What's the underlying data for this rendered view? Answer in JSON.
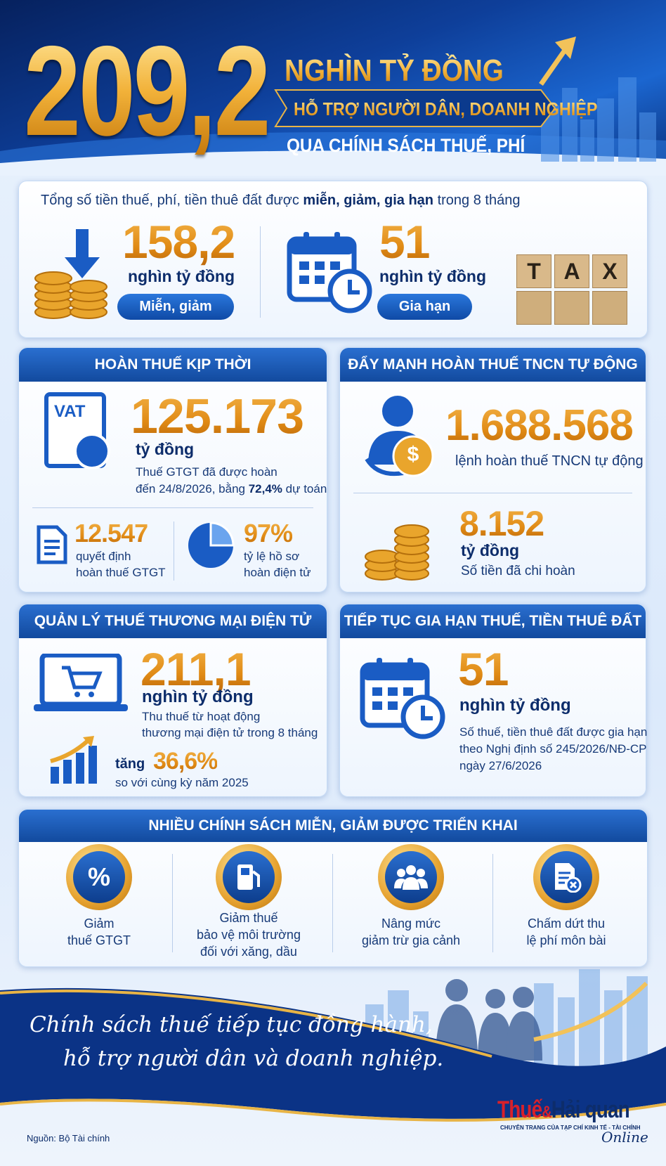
{
  "header": {
    "big_number": "209,2",
    "line1": "NGHÌN TỶ ĐỒNG",
    "line2": "HỖ TRỢ NGƯỜI DÂN, DOANH NGHIỆP",
    "line3": "QUA CHÍNH SÁCH THUẾ, PHÍ"
  },
  "summary": {
    "intro": [
      "Tổng số tiền thuế, phí, tiền thuê đất được ",
      "miễn, giảm, gia hạn",
      " trong 8 tháng"
    ],
    "items": [
      {
        "value": "158,2",
        "unit": "nghìn tỷ đồng",
        "tag": "Miễn, giảm"
      },
      {
        "value": "51",
        "unit": "nghìn tỷ đồng",
        "tag": "Gia hạn"
      }
    ],
    "tax_blocks": [
      "T",
      "A",
      "X"
    ]
  },
  "refund": {
    "title": "HOÀN THUẾ KỊP THỜI",
    "icon_text": "VAT",
    "value": "125.173",
    "unit": "tỷ đồng",
    "desc_line1": "Thuế GTGT đã được hoàn",
    "desc_line2": [
      "đến 24/8/2026, bằng ",
      "72,4%",
      " dự toán"
    ],
    "sub": [
      {
        "value": "12.547",
        "lines": [
          "quyết định",
          "hoàn thuế GTGT"
        ]
      },
      {
        "value": "97%",
        "lines": [
          "tỷ lệ hồ sơ",
          "hoàn điện tử"
        ]
      }
    ]
  },
  "pit": {
    "title": "ĐẨY MẠNH HOÀN THUẾ TNCN TỰ ĐỘNG",
    "value": "1.688.568",
    "label": "lệnh hoàn thuế TNCN tự động",
    "icon_text": "$",
    "value2": "8.152",
    "unit2": "tỷ đồng",
    "label2": "Số tiền đã chi hoàn"
  },
  "ecommerce": {
    "title": "QUẢN LÝ THUẾ THƯƠNG MẠI ĐIỆN TỬ",
    "value": "211,1",
    "unit": "nghìn tỷ đồng",
    "lines": [
      "Thu thuế từ hoạt động",
      "thương mại điện tử trong 8 tháng"
    ],
    "growth_word": "tăng",
    "growth_value": "36,6%",
    "growth_note": "so với cùng kỳ năm 2025"
  },
  "extension": {
    "title": "TIẾP TỤC GIA HẠN THUẾ, TIỀN THUÊ ĐẤT",
    "value": "51",
    "unit": "nghìn tỷ đồng",
    "lines": [
      "Số thuế, tiền thuê đất được gia hạn",
      "theo Nghị định số 245/2026/NĐ-CP",
      "ngày 27/6/2026"
    ]
  },
  "policies": {
    "title": "NHIỀU CHÍNH SÁCH MIỄN, GIẢM ĐƯỢC TRIỂN KHAI",
    "icon_text": "%",
    "items": [
      {
        "lines": [
          "Giảm",
          "thuế GTGT"
        ]
      },
      {
        "lines": [
          "Giảm thuế",
          "bảo vệ môi trường",
          "đối với xăng, dầu"
        ]
      },
      {
        "lines": [
          "Nâng mức",
          "giảm trừ gia cảnh"
        ]
      },
      {
        "lines": [
          "Chấm dứt thu",
          "lệ phí môn bài"
        ]
      }
    ]
  },
  "footer": {
    "slogan": [
      "Chính sách thuế tiếp tục đồng hành,",
      "hỗ trợ người dân và doanh nghiệp."
    ],
    "logo": [
      "Thuế",
      "&",
      "Hải quan"
    ],
    "logo_sub": "CHUYÊN TRANG CỦA TẠP CHÍ KINH TẾ - TÀI CHÍNH",
    "logo_online": "Online",
    "source": "Nguồn: Bộ Tài chính"
  }
}
